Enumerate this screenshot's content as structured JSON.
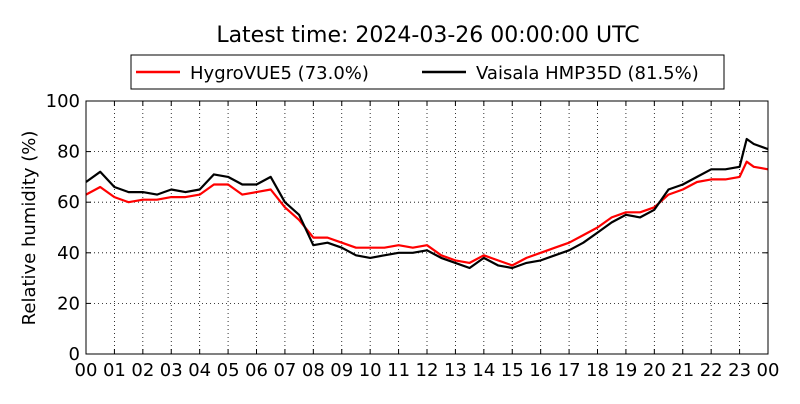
{
  "chart_data": {
    "type": "line",
    "title": "Latest time: 2024-03-26 00:00:00 UTC",
    "ylabel": "Relative humidity (%)",
    "xlabel": "",
    "xlim": [
      0,
      24
    ],
    "ylim": [
      0,
      100
    ],
    "grid": true,
    "legend_position": "top",
    "x_ticks": [
      "00",
      "01",
      "02",
      "03",
      "04",
      "05",
      "06",
      "07",
      "08",
      "09",
      "10",
      "11",
      "12",
      "13",
      "14",
      "15",
      "16",
      "17",
      "18",
      "19",
      "20",
      "21",
      "22",
      "23",
      "00"
    ],
    "y_ticks": [
      0,
      20,
      40,
      60,
      80,
      100
    ],
    "x": [
      0,
      0.5,
      1,
      1.5,
      2,
      2.5,
      3,
      3.5,
      4,
      4.5,
      5,
      5.5,
      6,
      6.5,
      7,
      7.5,
      8,
      8.5,
      9,
      9.5,
      10,
      10.5,
      11,
      11.5,
      12,
      12.5,
      13,
      13.5,
      14,
      14.5,
      15,
      15.5,
      16,
      16.5,
      17,
      17.5,
      18,
      18.5,
      19,
      19.5,
      20,
      20.5,
      21,
      21.5,
      22,
      22.5,
      23,
      23.25,
      23.5,
      24
    ],
    "series": [
      {
        "name": "HygroVUE5 (73.0%)",
        "color": "#ff0000",
        "values": [
          63,
          66,
          62,
          60,
          61,
          61,
          62,
          62,
          63,
          67,
          67,
          63,
          64,
          65,
          58,
          53,
          46,
          46,
          44,
          42,
          42,
          42,
          43,
          42,
          43,
          39,
          37,
          36,
          39,
          37,
          35,
          38,
          40,
          42,
          44,
          47,
          50,
          54,
          56,
          56,
          58,
          63,
          65,
          68,
          69,
          69,
          70,
          76,
          74,
          73
        ]
      },
      {
        "name": "Vaisala HMP35D (81.5%)",
        "color": "#000000",
        "values": [
          68,
          72,
          66,
          64,
          64,
          63,
          65,
          64,
          65,
          71,
          70,
          67,
          67,
          70,
          60,
          55,
          43,
          44,
          42,
          39,
          38,
          39,
          40,
          40,
          41,
          38,
          36,
          34,
          38,
          35,
          34,
          36,
          37,
          39,
          41,
          44,
          48,
          52,
          55,
          54,
          57,
          65,
          67,
          70,
          73,
          73,
          74,
          85,
          83,
          81
        ]
      }
    ]
  }
}
